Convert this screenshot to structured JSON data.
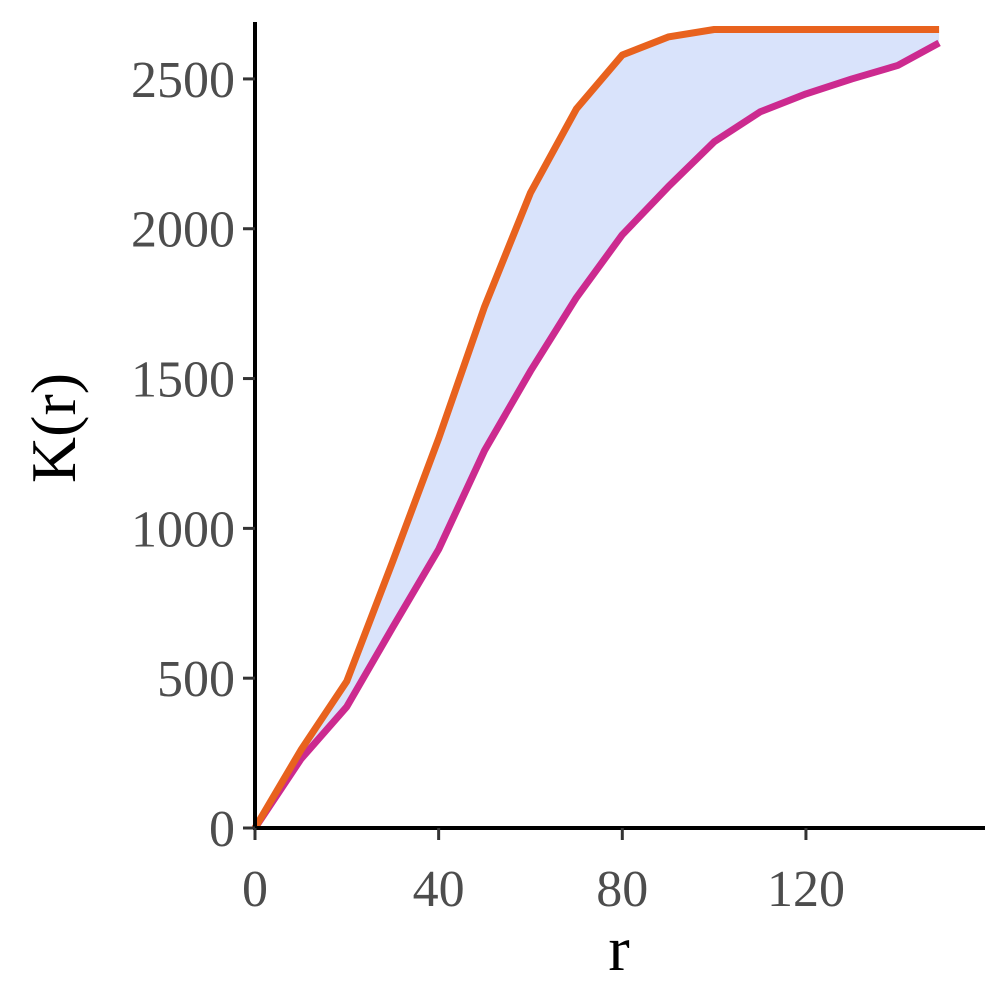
{
  "chart_data": {
    "type": "area",
    "xlabel": "r",
    "ylabel": "K(r)",
    "xlim": [
      0,
      159
    ],
    "ylim": [
      0,
      2690
    ],
    "xticks": [
      0,
      40,
      80,
      120
    ],
    "yticks": [
      0,
      500,
      1000,
      1500,
      2000,
      2500
    ],
    "grid": false,
    "legend": "none",
    "band": {
      "fill_color": "#d9e3fb"
    },
    "series": [
      {
        "color": "#e8621e",
        "role": "upper",
        "x": [
          0,
          10,
          20,
          30,
          40,
          50,
          60,
          70,
          80,
          90,
          100,
          110,
          120,
          130,
          140,
          149
        ],
        "values": [
          0,
          260,
          490,
          890,
          1300,
          1740,
          2120,
          2400,
          2580,
          2640,
          2665,
          2665,
          2665,
          2665,
          2665,
          2665
        ]
      },
      {
        "color": "#cc2a8f",
        "role": "lower",
        "x": [
          0,
          10,
          20,
          30,
          40,
          50,
          60,
          70,
          80,
          90,
          100,
          110,
          120,
          130,
          140,
          149
        ],
        "values": [
          0,
          230,
          405,
          670,
          930,
          1260,
          1525,
          1770,
          1980,
          2140,
          2290,
          2390,
          2450,
          2500,
          2545,
          2620
        ]
      }
    ]
  }
}
